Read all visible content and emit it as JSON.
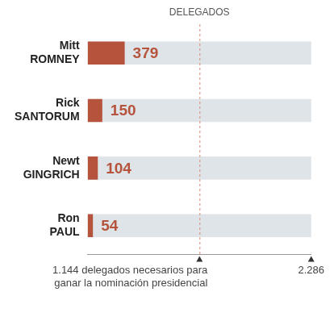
{
  "chart_data": {
    "type": "bar",
    "orientation": "horizontal",
    "title": "DELEGADOS",
    "categories": [
      "Mitt ROMNEY",
      "Rick SANTORUM",
      "Newt GINGRICH",
      "Ron PAUL"
    ],
    "values": [
      379,
      150,
      104,
      54
    ],
    "color": "#b5533c",
    "xlim": [
      0,
      2286
    ],
    "xticks": [
      {
        "value": 2286,
        "label": "2.286"
      }
    ],
    "annotations": [
      {
        "x": 1144,
        "text": "1.144 delegados necesarios para ganar la nominación presidencial"
      }
    ],
    "data_labels": true,
    "grid": false
  }
}
